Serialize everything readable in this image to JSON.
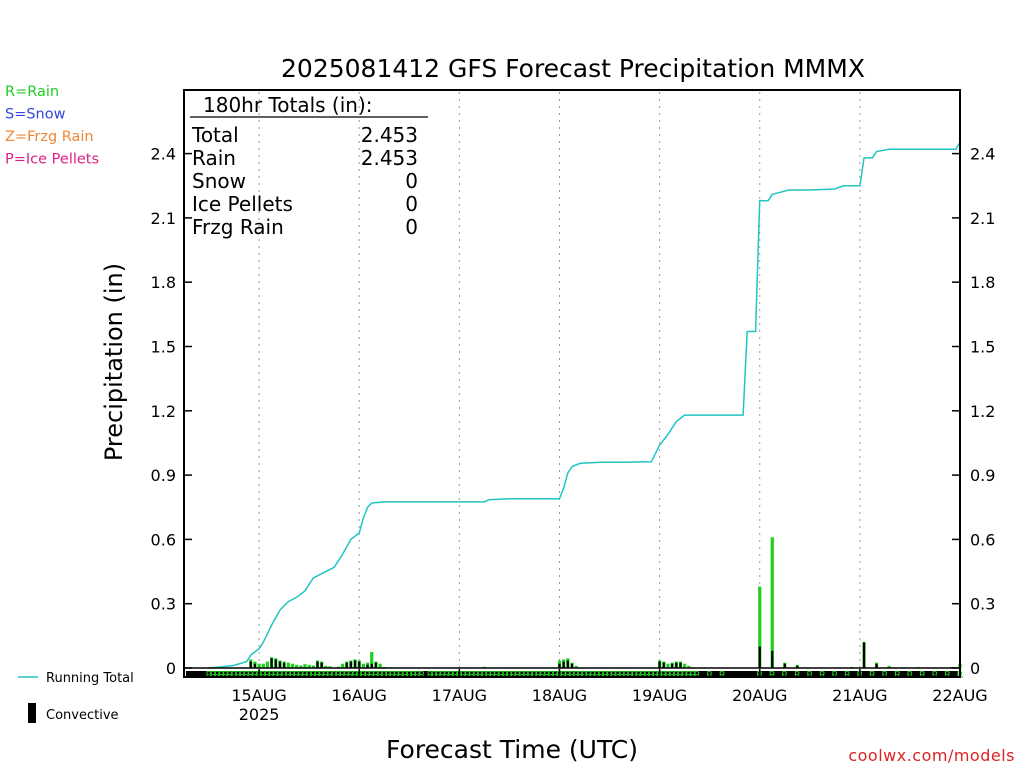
{
  "chart_data": {
    "type": "bar",
    "title": "2025081412 GFS Forecast Precipitation MMMX",
    "ylabel": "Precipitation (in)",
    "xlabel": "Forecast Time (UTC)",
    "ylim": [
      0,
      2.55
    ],
    "y_ticks": [
      "0",
      "0.3",
      "0.6",
      "0.9",
      "1.2",
      "1.5",
      "1.8",
      "2.1",
      "2.4"
    ],
    "x_range_hours": [
      -6,
      180
    ],
    "x_tick_labels": [
      {
        "hour": 12,
        "label": "15AUG",
        "sub": "2025"
      },
      {
        "hour": 36,
        "label": "16AUG",
        "sub": ""
      },
      {
        "hour": 60,
        "label": "17AUG",
        "sub": ""
      },
      {
        "hour": 84,
        "label": "18AUG",
        "sub": ""
      },
      {
        "hour": 108,
        "label": "19AUG",
        "sub": ""
      },
      {
        "hour": 132,
        "label": "20AUG",
        "sub": ""
      },
      {
        "hour": 156,
        "label": "21AUG",
        "sub": ""
      },
      {
        "hour": 180,
        "label": "22AUG",
        "sub": ""
      }
    ],
    "totals_box": {
      "header": "180hr Totals (in):",
      "rows": [
        {
          "label": "Total",
          "value": "2.453"
        },
        {
          "label": "Rain",
          "value": "2.453"
        },
        {
          "label": "Snow",
          "value": "0"
        },
        {
          "label": "Ice Pellets",
          "value": "0"
        },
        {
          "label": "Frzg Rain",
          "value": "0"
        }
      ]
    },
    "ptype_legend": [
      {
        "text": "R=Rain",
        "color": "#22cc22"
      },
      {
        "text": "S=Snow",
        "color": "#3344dd"
      },
      {
        "text": "Z=Frzg Rain",
        "color": "#ee8833"
      },
      {
        "text": "P=Ice Pellets",
        "color": "#dd2288"
      }
    ],
    "series": [
      {
        "name": "Running Total",
        "color": "#22c4c4",
        "points": [
          [
            0,
            0
          ],
          [
            3,
            0.005
          ],
          [
            6,
            0.012
          ],
          [
            9,
            0.03
          ],
          [
            10,
            0.06
          ],
          [
            12,
            0.09
          ],
          [
            13,
            0.12
          ],
          [
            15,
            0.2
          ],
          [
            17,
            0.27
          ],
          [
            19,
            0.31
          ],
          [
            21,
            0.33
          ],
          [
            23,
            0.36
          ],
          [
            25,
            0.42
          ],
          [
            27,
            0.44
          ],
          [
            30,
            0.47
          ],
          [
            32,
            0.53
          ],
          [
            34,
            0.6
          ],
          [
            36,
            0.63
          ],
          [
            37,
            0.7
          ],
          [
            38,
            0.75
          ],
          [
            39,
            0.77
          ],
          [
            42,
            0.775
          ],
          [
            48,
            0.775
          ],
          [
            54,
            0.775
          ],
          [
            60,
            0.775
          ],
          [
            66,
            0.775
          ],
          [
            67,
            0.785
          ],
          [
            72,
            0.79
          ],
          [
            78,
            0.79
          ],
          [
            84,
            0.79
          ],
          [
            85,
            0.84
          ],
          [
            86,
            0.91
          ],
          [
            87,
            0.94
          ],
          [
            89,
            0.955
          ],
          [
            94,
            0.96
          ],
          [
            100,
            0.96
          ],
          [
            106,
            0.962
          ],
          [
            108,
            1.04
          ],
          [
            110,
            1.09
          ],
          [
            112,
            1.15
          ],
          [
            114,
            1.18
          ],
          [
            118,
            1.18
          ],
          [
            122,
            1.18
          ],
          [
            126,
            1.18
          ],
          [
            128,
            1.18
          ],
          [
            129,
            1.57
          ],
          [
            131,
            1.57
          ],
          [
            132,
            2.18
          ],
          [
            134,
            2.18
          ],
          [
            135,
            2.21
          ],
          [
            137,
            2.22
          ],
          [
            139,
            2.23
          ],
          [
            144,
            2.23
          ],
          [
            150,
            2.235
          ],
          [
            152,
            2.25
          ],
          [
            156,
            2.25
          ],
          [
            157,
            2.38
          ],
          [
            159,
            2.38
          ],
          [
            160,
            2.41
          ],
          [
            163,
            2.42
          ],
          [
            168,
            2.42
          ],
          [
            174,
            2.42
          ],
          [
            178,
            2.42
          ],
          [
            179,
            2.42
          ],
          [
            180,
            2.453
          ]
        ]
      },
      {
        "name": "Convective",
        "color": "#000000"
      }
    ],
    "bars_rain": [
      [
        10,
        0.04
      ],
      [
        11,
        0.03
      ],
      [
        12,
        0.02
      ],
      [
        13,
        0.02
      ],
      [
        14,
        0.03
      ],
      [
        15,
        0.05
      ],
      [
        16,
        0.045
      ],
      [
        17,
        0.035
      ],
      [
        18,
        0.03
      ],
      [
        19,
        0.025
      ],
      [
        20,
        0.02
      ],
      [
        21,
        0.015
      ],
      [
        22,
        0.012
      ],
      [
        23,
        0.018
      ],
      [
        24,
        0.015
      ],
      [
        25,
        0.012
      ],
      [
        26,
        0.035
      ],
      [
        27,
        0.03
      ],
      [
        28,
        0.01
      ],
      [
        29,
        0.008
      ],
      [
        31,
        0.006
      ],
      [
        32,
        0.02
      ],
      [
        33,
        0.03
      ],
      [
        34,
        0.035
      ],
      [
        35,
        0.04
      ],
      [
        36,
        0.035
      ],
      [
        37,
        0.02
      ],
      [
        38,
        0.025
      ],
      [
        39,
        0.075
      ],
      [
        40,
        0.03
      ],
      [
        41,
        0.02
      ],
      [
        42,
        0.005
      ],
      [
        66,
        0.006
      ],
      [
        84,
        0.035
      ],
      [
        85,
        0.04
      ],
      [
        86,
        0.045
      ],
      [
        87,
        0.025
      ],
      [
        88,
        0.01
      ],
      [
        108,
        0.035
      ],
      [
        109,
        0.03
      ],
      [
        110,
        0.02
      ],
      [
        111,
        0.025
      ],
      [
        112,
        0.03
      ],
      [
        113,
        0.03
      ],
      [
        114,
        0.02
      ],
      [
        115,
        0.01
      ],
      [
        132,
        0.38
      ],
      [
        135,
        0.61
      ],
      [
        138,
        0.025
      ],
      [
        141,
        0.015
      ],
      [
        154,
        0.005
      ],
      [
        157,
        0.12
      ],
      [
        160,
        0.025
      ],
      [
        163,
        0.01
      ],
      [
        170,
        0.005
      ],
      [
        178,
        0.005
      ],
      [
        180,
        0.02
      ]
    ],
    "bars_convective": [
      [
        10,
        0.03
      ],
      [
        11,
        0.02
      ],
      [
        15,
        0.045
      ],
      [
        16,
        0.04
      ],
      [
        17,
        0.03
      ],
      [
        18,
        0.025
      ],
      [
        26,
        0.03
      ],
      [
        27,
        0.025
      ],
      [
        33,
        0.025
      ],
      [
        34,
        0.03
      ],
      [
        35,
        0.035
      ],
      [
        36,
        0.03
      ],
      [
        38,
        0.015
      ],
      [
        39,
        0.02
      ],
      [
        40,
        0.025
      ],
      [
        84,
        0.02
      ],
      [
        85,
        0.03
      ],
      [
        86,
        0.035
      ],
      [
        87,
        0.02
      ],
      [
        108,
        0.03
      ],
      [
        109,
        0.025
      ],
      [
        111,
        0.02
      ],
      [
        112,
        0.025
      ],
      [
        113,
        0.025
      ],
      [
        132,
        0.1
      ],
      [
        135,
        0.08
      ],
      [
        138,
        0.02
      ],
      [
        141,
        0.01
      ],
      [
        157,
        0.12
      ],
      [
        160,
        0.02
      ]
    ],
    "ptype_codes": "R",
    "ptype_hours": [
      0,
      1,
      2,
      3,
      4,
      5,
      6,
      7,
      8,
      9,
      10,
      11,
      12,
      13,
      14,
      15,
      16,
      17,
      18,
      19,
      20,
      21,
      22,
      23,
      24,
      25,
      26,
      27,
      28,
      29,
      30,
      31,
      32,
      33,
      34,
      35,
      36,
      37,
      38,
      39,
      40,
      41,
      42,
      43,
      44,
      45,
      46,
      47,
      48,
      49,
      50,
      51,
      53,
      54,
      55,
      56,
      57,
      58,
      59,
      60,
      61,
      62,
      63,
      64,
      65,
      66,
      67,
      68,
      69,
      70,
      71,
      72,
      73,
      74,
      75,
      76,
      77,
      78,
      79,
      80,
      81,
      82,
      83,
      84,
      85,
      86,
      87,
      88,
      89,
      90,
      91,
      92,
      93,
      94,
      95,
      96,
      97,
      98,
      99,
      100,
      101,
      102,
      103,
      104,
      105,
      106,
      107,
      108,
      109,
      110,
      111,
      112,
      113,
      114,
      115,
      116,
      117,
      120,
      123,
      132,
      135,
      138,
      141,
      144,
      147,
      150,
      153,
      156,
      159,
      162,
      165,
      168,
      171,
      174,
      177,
      180
    ]
  },
  "legend": {
    "running_total_label": "Running Total",
    "convective_label": "Convective"
  },
  "credit": "coolwx.com/models"
}
